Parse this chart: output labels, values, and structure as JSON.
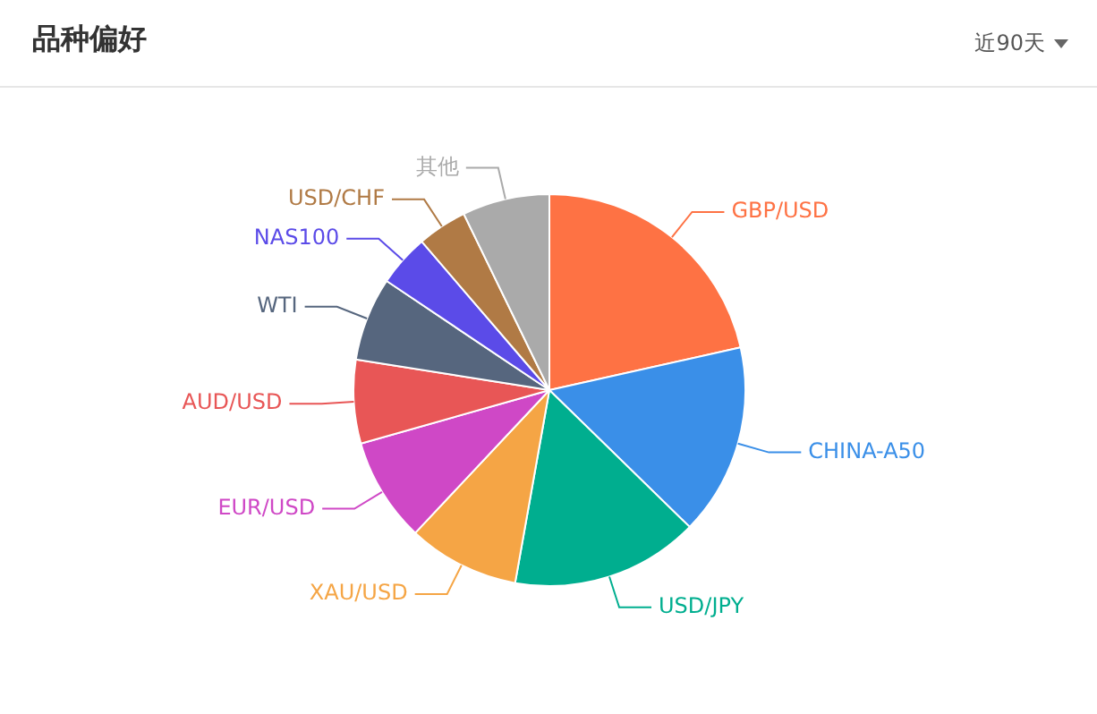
{
  "chart_data": {
    "type": "pie",
    "title": "品种偏好",
    "annotations": [
      "近90天"
    ],
    "categories": [
      "GBP/USD",
      "CHINA-A50",
      "USD/JPY",
      "XAU/USD",
      "EUR/USD",
      "AUD/USD",
      "WTI",
      "NAS100",
      "USD/CHF",
      "其他"
    ],
    "values": [
      21.5,
      15.8,
      15.5,
      9.2,
      8.6,
      6.9,
      6.9,
      4.3,
      4.1,
      7.2
    ],
    "colors": [
      "#fe7244",
      "#3a8fe8",
      "#00ae8f",
      "#f5a545",
      "#cf48c6",
      "#e85656",
      "#56667e",
      "#5b4be8",
      "#b07a45",
      "#aaaaaa"
    ],
    "legend": false
  }
}
